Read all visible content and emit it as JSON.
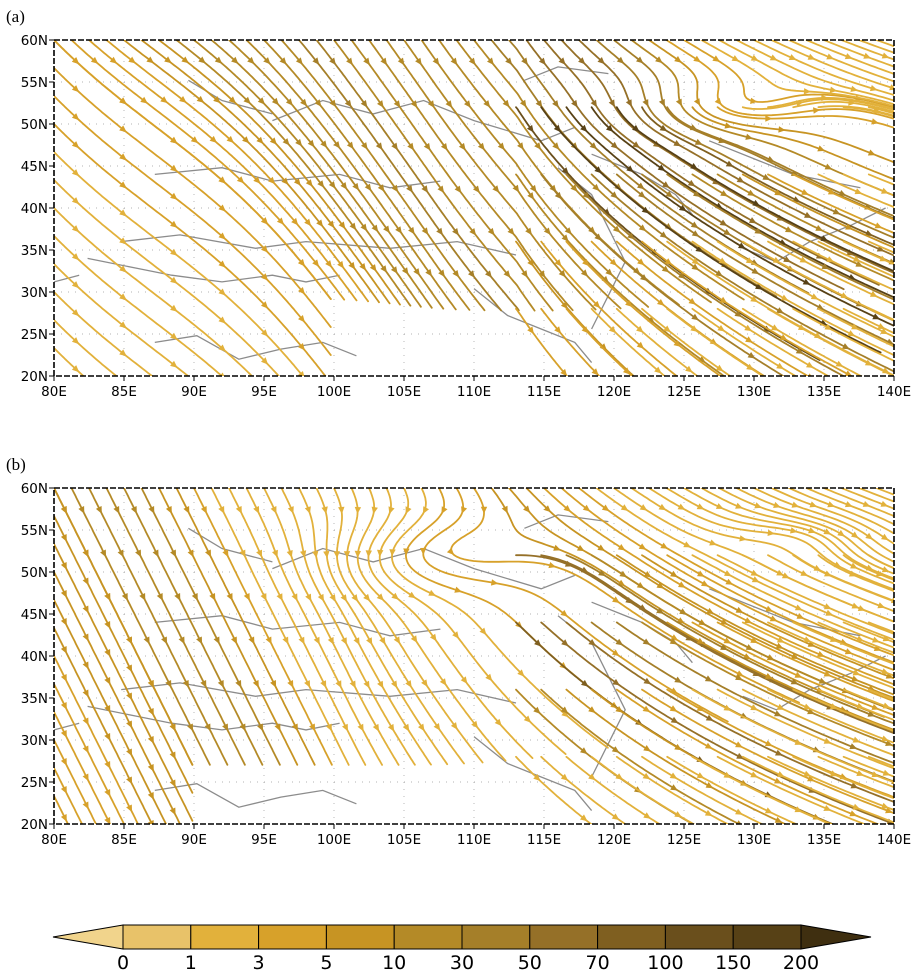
{
  "panels": [
    {
      "id": "a",
      "label": "(a)"
    },
    {
      "id": "b",
      "label": "(b)"
    }
  ],
  "x_ticks": [
    "80E",
    "85E",
    "90E",
    "95E",
    "100E",
    "105E",
    "110E",
    "115E",
    "120E",
    "125E",
    "130E",
    "135E",
    "140E"
  ],
  "y_ticks": [
    "20N",
    "25N",
    "30N",
    "35N",
    "40N",
    "45N",
    "50N",
    "55N",
    "60N"
  ],
  "colorbar": {
    "labels": [
      "0",
      "1",
      "3",
      "5",
      "10",
      "30",
      "50",
      "70",
      "100",
      "150",
      "200"
    ],
    "colors": [
      "#f1d48c",
      "#e8c269",
      "#e2b13b",
      "#d7a12a",
      "#c79423",
      "#b48a27",
      "#a57f29",
      "#957028",
      "#7f5f20",
      "#6a4f1c",
      "#574116",
      "#3f2f10"
    ]
  },
  "colors": {
    "coastline": "#8c8c8c",
    "frame": "#000000"
  }
}
